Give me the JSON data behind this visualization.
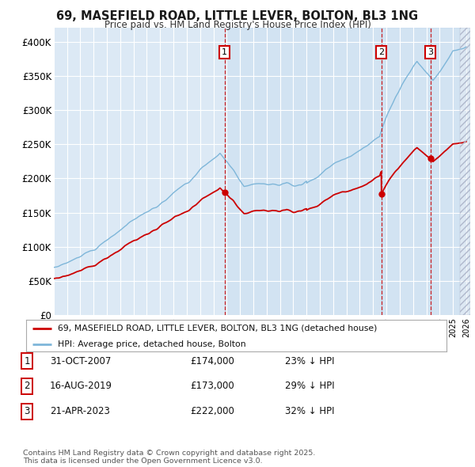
{
  "title": "69, MASEFIELD ROAD, LITTLE LEVER, BOLTON, BL3 1NG",
  "subtitle": "Price paid vs. HM Land Registry's House Price Index (HPI)",
  "background_color": "#ffffff",
  "plot_bg_color": "#dce9f5",
  "grid_color": "#ffffff",
  "hpi_color": "#7eb6d9",
  "price_color": "#cc0000",
  "sale_dates_num": [
    2007.833,
    2019.625,
    2023.308
  ],
  "sale_prices": [
    174000,
    173000,
    222000
  ],
  "sale_labels": [
    "1",
    "2",
    "3"
  ],
  "legend_property": "69, MASEFIELD ROAD, LITTLE LEVER, BOLTON, BL3 1NG (detached house)",
  "legend_hpi": "HPI: Average price, detached house, Bolton",
  "table_rows": [
    {
      "label": "1",
      "date": "31-OCT-2007",
      "price": "£174,000",
      "pct": "23% ↓ HPI"
    },
    {
      "label": "2",
      "date": "16-AUG-2019",
      "price": "£173,000",
      "pct": "29% ↓ HPI"
    },
    {
      "label": "3",
      "date": "21-APR-2023",
      "price": "£222,000",
      "pct": "32% ↓ HPI"
    }
  ],
  "footer": "Contains HM Land Registry data © Crown copyright and database right 2025.\nThis data is licensed under the Open Government Licence v3.0.",
  "ylim": [
    0,
    420000
  ],
  "yticks": [
    0,
    50000,
    100000,
    150000,
    200000,
    250000,
    300000,
    350000,
    400000
  ],
  "ytick_labels": [
    "£0",
    "£50K",
    "£100K",
    "£150K",
    "£200K",
    "£250K",
    "£300K",
    "£350K",
    "£400K"
  ],
  "xlim_start": 1995.0,
  "xlim_end": 2026.3,
  "hatch_start": 2025.5
}
